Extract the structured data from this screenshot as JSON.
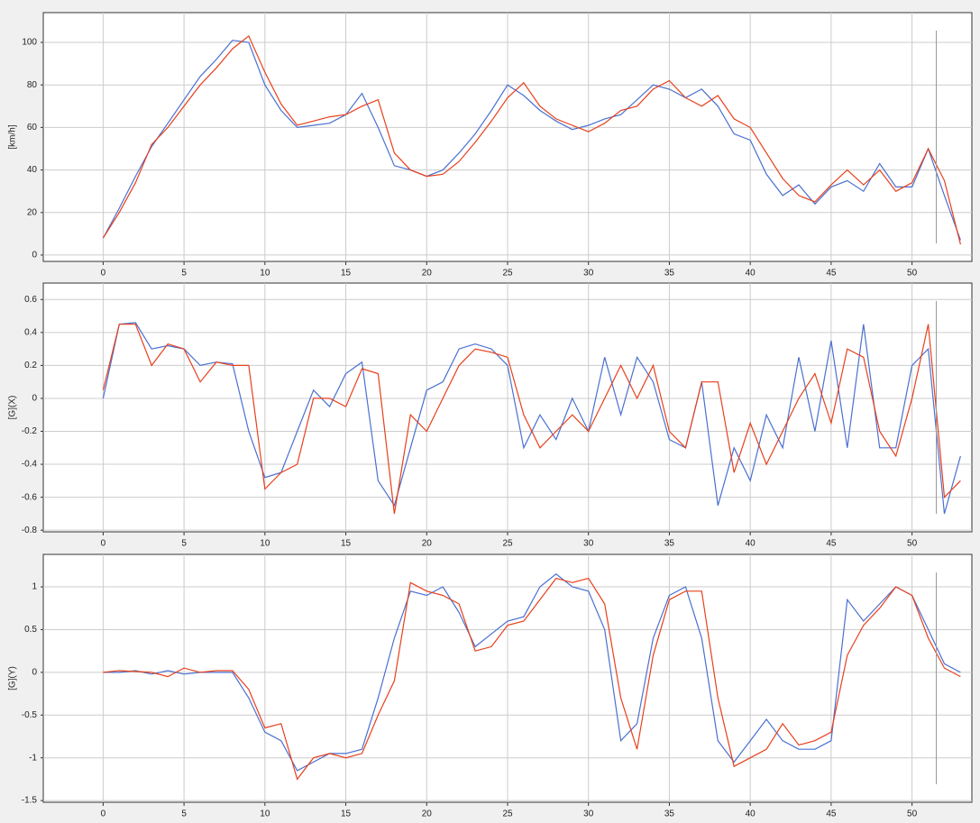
{
  "chart_data": [
    {
      "type": "line",
      "y_label": "[km/h]",
      "xlim": [
        -3.7,
        53.7
      ],
      "ylim": [
        -3,
        114
      ],
      "xticks": [
        0,
        5,
        10,
        15,
        20,
        25,
        30,
        35,
        40,
        45,
        50
      ],
      "yticks": [
        0,
        20,
        40,
        60,
        80,
        100
      ],
      "grid": true,
      "cursor_x": 51.5,
      "x": [
        0,
        1,
        2,
        3,
        4,
        5,
        6,
        7,
        8,
        9,
        10,
        11,
        12,
        13,
        14,
        15,
        16,
        17,
        18,
        19,
        20,
        21,
        22,
        23,
        24,
        25,
        26,
        27,
        28,
        29,
        30,
        31,
        32,
        33,
        34,
        35,
        36,
        37,
        38,
        39,
        40,
        41,
        42,
        43,
        44,
        45,
        46,
        47,
        48,
        49,
        50,
        51,
        52,
        53
      ],
      "series": [
        {
          "color": "#4a70d0",
          "values": [
            8,
            22,
            37,
            51,
            62,
            73,
            84,
            92,
            101,
            100,
            80,
            68,
            60,
            61,
            62,
            66,
            76,
            60,
            42,
            40,
            37,
            40,
            48,
            57,
            68,
            80,
            75,
            68,
            63,
            59,
            61,
            64,
            66,
            73,
            80,
            78,
            74,
            78,
            70,
            57,
            54,
            38,
            28,
            33,
            24,
            32,
            35,
            30,
            43,
            32,
            32,
            50,
            28,
            7
          ]
        },
        {
          "color": "#e8401c",
          "values": [
            8,
            20,
            34,
            52,
            60,
            70,
            80,
            88,
            97,
            103,
            86,
            71,
            61,
            63,
            65,
            66,
            70,
            73,
            48,
            40,
            37,
            38,
            44,
            53,
            63,
            74,
            81,
            70,
            64,
            61,
            58,
            62,
            68,
            70,
            78,
            82,
            74,
            70,
            75,
            64,
            60,
            48,
            36,
            28,
            25,
            33,
            40,
            33,
            40,
            30,
            34,
            50,
            35,
            5
          ]
        }
      ]
    },
    {
      "type": "line",
      "y_label": "[G](X)",
      "xlim": [
        -3.7,
        53.7
      ],
      "ylim": [
        -0.81,
        0.7
      ],
      "xticks": [
        0,
        5,
        10,
        15,
        20,
        25,
        30,
        35,
        40,
        45,
        50
      ],
      "yticks": [
        -0.8,
        -0.6,
        -0.4,
        -0.2,
        0,
        0.2,
        0.4,
        0.6
      ],
      "grid": true,
      "cursor_x": 51.5,
      "x": [
        0,
        1,
        2,
        3,
        4,
        5,
        6,
        7,
        8,
        9,
        10,
        11,
        12,
        13,
        14,
        15,
        16,
        17,
        18,
        19,
        20,
        21,
        22,
        23,
        24,
        25,
        26,
        27,
        28,
        29,
        30,
        31,
        32,
        33,
        34,
        35,
        36,
        37,
        38,
        39,
        40,
        41,
        42,
        43,
        44,
        45,
        46,
        47,
        48,
        49,
        50,
        51,
        52,
        53
      ],
      "series": [
        {
          "color": "#4a70d0",
          "values": [
            0,
            0.45,
            0.46,
            0.3,
            0.32,
            0.3,
            0.2,
            0.22,
            0.21,
            -0.2,
            -0.48,
            -0.45,
            -0.2,
            0.05,
            -0.05,
            0.15,
            0.22,
            -0.5,
            -0.65,
            -0.3,
            0.05,
            0.1,
            0.3,
            0.33,
            0.3,
            0.2,
            -0.3,
            -0.1,
            -0.25,
            0,
            -0.2,
            0.25,
            -0.1,
            0.25,
            0.1,
            -0.25,
            -0.3,
            0.1,
            -0.65,
            -0.3,
            -0.5,
            -0.1,
            -0.3,
            0.25,
            -0.2,
            0.35,
            -0.3,
            0.45,
            -0.3,
            -0.3,
            0.2,
            0.3,
            -0.7,
            -0.35
          ]
        },
        {
          "color": "#e8401c",
          "values": [
            0.05,
            0.45,
            0.45,
            0.2,
            0.33,
            0.3,
            0.1,
            0.22,
            0.2,
            0.2,
            -0.55,
            -0.45,
            -0.4,
            0,
            0,
            -0.05,
            0.18,
            0.15,
            -0.7,
            -0.1,
            -0.2,
            0,
            0.2,
            0.3,
            0.28,
            0.25,
            -0.1,
            -0.3,
            -0.2,
            -0.1,
            -0.2,
            0,
            0.2,
            0,
            0.2,
            -0.2,
            -0.3,
            0.1,
            0.1,
            -0.45,
            -0.15,
            -0.4,
            -0.2,
            0,
            0.15,
            -0.15,
            0.3,
            0.25,
            -0.2,
            -0.35,
            0,
            0.45,
            -0.6,
            -0.5
          ]
        }
      ]
    },
    {
      "type": "line",
      "y_label": "[G](Y)",
      "xlim": [
        -3.7,
        53.7
      ],
      "ylim": [
        -1.52,
        1.38
      ],
      "xticks": [
        0,
        5,
        10,
        15,
        20,
        25,
        30,
        35,
        40,
        45,
        50
      ],
      "yticks": [
        -1.5,
        -1,
        -0.5,
        0,
        0.5,
        1
      ],
      "grid": true,
      "cursor_x": 51.5,
      "x": [
        0,
        1,
        2,
        3,
        4,
        5,
        6,
        7,
        8,
        9,
        10,
        11,
        12,
        13,
        14,
        15,
        16,
        17,
        18,
        19,
        20,
        21,
        22,
        23,
        24,
        25,
        26,
        27,
        28,
        29,
        30,
        31,
        32,
        33,
        34,
        35,
        36,
        37,
        38,
        39,
        40,
        41,
        42,
        43,
        44,
        45,
        46,
        47,
        48,
        49,
        50,
        51,
        52,
        53
      ],
      "series": [
        {
          "color": "#4a70d0",
          "values": [
            0,
            0,
            0.02,
            -0.02,
            0.02,
            -0.02,
            0,
            0,
            0,
            -0.3,
            -0.7,
            -0.8,
            -1.15,
            -1.05,
            -0.95,
            -0.95,
            -0.9,
            -0.3,
            0.4,
            0.95,
            0.9,
            1.0,
            0.7,
            0.3,
            0.45,
            0.6,
            0.65,
            1.0,
            1.15,
            1.0,
            0.95,
            0.5,
            -0.8,
            -0.6,
            0.4,
            0.9,
            1.0,
            0.4,
            -0.8,
            -1.05,
            -0.8,
            -0.55,
            -0.8,
            -0.9,
            -0.9,
            -0.8,
            0.85,
            0.6,
            0.8,
            1.0,
            0.9,
            0.5,
            0.1,
            0
          ]
        },
        {
          "color": "#e8401c",
          "values": [
            0,
            0.02,
            0.01,
            0,
            -0.05,
            0.05,
            0,
            0.02,
            0.02,
            -0.2,
            -0.65,
            -0.6,
            -1.25,
            -1.0,
            -0.95,
            -1.0,
            -0.95,
            -0.5,
            -0.1,
            1.05,
            0.95,
            0.9,
            0.8,
            0.25,
            0.3,
            0.55,
            0.6,
            0.85,
            1.1,
            1.05,
            1.1,
            0.8,
            -0.3,
            -0.9,
            0.2,
            0.85,
            0.95,
            0.95,
            -0.3,
            -1.1,
            -1.0,
            -0.9,
            -0.6,
            -0.85,
            -0.8,
            -0.7,
            0.2,
            0.55,
            0.75,
            1.0,
            0.9,
            0.4,
            0.05,
            -0.05
          ]
        }
      ]
    }
  ]
}
